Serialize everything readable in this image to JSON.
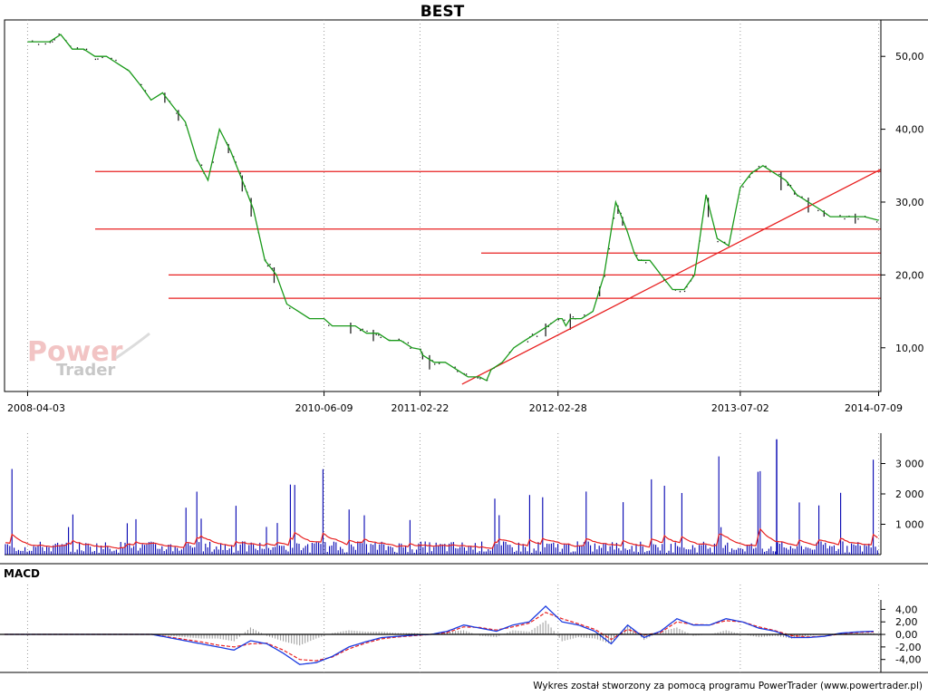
{
  "chart_data": [
    {
      "type": "line",
      "title": "BEST",
      "x_ticks": [
        "2008-04-03",
        "2010-06-09",
        "2011-02-22",
        "2012-02-28",
        "2013-07-02",
        "2014-07-09"
      ],
      "y_ticks": [
        "10,00",
        "20,00",
        "30,00",
        "40,00",
        "50,00"
      ],
      "ylim": [
        4,
        55
      ],
      "grid": true,
      "series": [
        {
          "color": "#1a9a1a",
          "x": [
            "2008-04-03",
            "2008-05-01",
            "2008-06-01",
            "2008-07-01",
            "2008-08-01",
            "2008-09-01",
            "2008-10-01",
            "2008-11-01",
            "2008-12-01",
            "2009-01-01",
            "2009-02-01",
            "2009-03-01",
            "2009-04-01",
            "2009-05-01",
            "2009-06-01",
            "2009-07-01",
            "2009-08-01",
            "2009-09-01",
            "2009-10-01",
            "2009-11-01",
            "2009-12-01",
            "2010-01-01",
            "2010-02-01",
            "2010-03-01",
            "2010-04-01",
            "2010-05-01",
            "2010-06-01",
            "2010-06-09",
            "2010-07-01",
            "2010-08-01",
            "2010-09-01",
            "2010-10-01",
            "2010-11-01",
            "2010-12-01",
            "2011-01-01",
            "2011-02-01",
            "2011-02-22",
            "2011-03-01",
            "2011-04-01",
            "2011-05-01",
            "2011-06-01",
            "2011-07-01",
            "2011-08-01",
            "2011-08-20",
            "2011-09-01",
            "2011-10-01",
            "2011-11-01",
            "2011-12-01",
            "2012-01-01",
            "2012-02-01",
            "2012-02-28",
            "2012-03-10",
            "2012-03-20",
            "2012-04-01",
            "2012-05-01",
            "2012-06-01",
            "2012-07-01",
            "2012-08-01",
            "2012-09-01",
            "2012-09-20",
            "2012-10-01",
            "2012-11-01",
            "2012-12-01",
            "2013-01-01",
            "2013-02-01",
            "2013-03-01",
            "2013-04-01",
            "2013-05-01",
            "2013-06-01",
            "2013-07-02",
            "2013-08-01",
            "2013-09-01",
            "2013-10-01",
            "2013-11-01",
            "2013-12-01",
            "2014-01-01",
            "2014-02-01",
            "2014-03-01",
            "2014-04-01",
            "2014-05-01",
            "2014-06-01",
            "2014-07-09"
          ],
          "values": [
            52,
            52,
            52,
            53,
            51,
            51,
            50,
            50,
            49,
            48,
            46,
            44,
            45,
            43,
            41,
            36,
            33,
            40,
            37,
            33,
            29,
            22,
            20,
            16,
            15,
            14,
            14,
            14,
            13,
            13,
            13,
            12,
            12,
            11,
            11,
            10,
            9.8,
            9,
            8,
            8,
            7,
            6,
            6,
            5.5,
            7,
            8,
            10,
            11,
            12,
            13,
            14,
            14,
            13,
            14,
            14,
            15,
            20,
            30,
            26,
            23,
            22,
            22,
            20,
            18,
            18,
            20,
            31,
            25,
            24,
            32,
            34,
            35,
            34,
            33,
            31,
            30,
            29,
            28,
            28,
            28,
            28,
            27.5
          ]
        }
      ],
      "horizontal_lines": [
        34.2,
        26.3,
        23,
        20,
        16.8
      ],
      "trendline": {
        "x": [
          "2011-06-15",
          "2014-07-15"
        ],
        "y": [
          5,
          34.5
        ]
      }
    },
    {
      "type": "bar",
      "y_ticks": [
        "1 000",
        "2 000",
        "3 000"
      ],
      "ylim": [
        0,
        4000
      ],
      "volume_color": "#0000b0",
      "average_color": "#e82020"
    },
    {
      "type": "line",
      "title": "MACD",
      "y_ticks": [
        "4,00",
        "2,00",
        "0,00",
        "-2,00",
        "-4,00"
      ],
      "ylim": [
        -5.2,
        5.5
      ],
      "series": [
        {
          "color": "#1a3ae0",
          "values": [
            0,
            0,
            0,
            0,
            0,
            0,
            0,
            0,
            0,
            0,
            -0.5,
            -1,
            -1.5,
            -2,
            -2.5,
            -1,
            -1.5,
            -3,
            -4.8,
            -4.5,
            -3.5,
            -2,
            -1.2,
            -0.5,
            -0.3,
            -0.1,
            0,
            0.5,
            1.5,
            1,
            0.5,
            1.5,
            2,
            4.5,
            2,
            1.5,
            0.5,
            -1.5,
            1.5,
            -0.5,
            0.5,
            2.5,
            1.5,
            1.5,
            2.5,
            2,
            1,
            0.5,
            -0.5,
            -0.5,
            -0.3,
            0.2,
            0.4,
            0.5
          ]
        },
        {
          "color": "#e82020",
          "values": [
            0,
            0,
            0,
            0,
            0,
            0,
            0,
            0,
            0,
            0,
            -0.4,
            -0.8,
            -1.2,
            -1.7,
            -2,
            -1.5,
            -1.4,
            -2.5,
            -4,
            -4.2,
            -3.6,
            -2.3,
            -1.4,
            -0.7,
            -0.4,
            -0.2,
            0,
            0.3,
            1.2,
            1.1,
            0.7,
            1.2,
            1.8,
            3.5,
            2.5,
            1.7,
            0.8,
            -0.8,
            0.8,
            -0.1,
            0.3,
            2,
            1.6,
            1.5,
            2.2,
            2,
            1.2,
            0.6,
            -0.2,
            -0.4,
            -0.3,
            0.1,
            0.3,
            0.4
          ]
        }
      ]
    }
  ],
  "footer_text": "Wykres został stworzony za pomocą programu PowerTrader (www.powertrader.pl)",
  "watermark": {
    "line1": "Power",
    "line2": "Trader"
  }
}
